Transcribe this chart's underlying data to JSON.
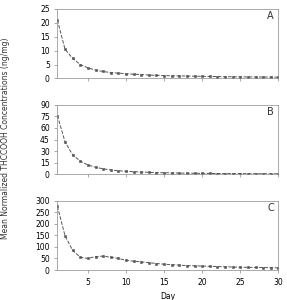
{
  "title": "",
  "ylabel": "Mean Normalized THCCOOH Concentrations (ng/mg)",
  "xlabel": "Day",
  "panel_labels": [
    "A",
    "B",
    "C"
  ],
  "xlim": [
    1,
    30
  ],
  "panel_A": {
    "ylim": [
      0,
      25
    ],
    "yticks": [
      0,
      5,
      10,
      15,
      20,
      25
    ],
    "x": [
      1,
      2,
      3,
      4,
      5,
      6,
      7,
      8,
      9,
      10,
      11,
      12,
      13,
      14,
      15,
      16,
      17,
      18,
      19,
      20,
      21,
      22,
      23,
      24,
      25,
      26,
      27,
      28,
      29,
      30
    ],
    "y": [
      21.0,
      10.5,
      7.2,
      5.0,
      3.8,
      3.0,
      2.5,
      2.1,
      1.9,
      1.7,
      1.5,
      1.4,
      1.2,
      1.1,
      1.0,
      0.95,
      0.9,
      0.85,
      0.8,
      0.75,
      0.7,
      0.65,
      0.62,
      0.6,
      0.58,
      0.55,
      0.52,
      0.5,
      0.48,
      0.45
    ]
  },
  "panel_B": {
    "ylim": [
      0,
      90
    ],
    "yticks": [
      0,
      15,
      30,
      45,
      60,
      75,
      90
    ],
    "x": [
      1,
      2,
      3,
      4,
      5,
      6,
      7,
      8,
      9,
      10,
      11,
      12,
      13,
      14,
      15,
      16,
      17,
      18,
      19,
      20,
      21,
      22,
      23,
      24,
      25,
      26,
      27,
      28,
      29,
      30
    ],
    "y": [
      76.0,
      42.0,
      25.0,
      17.0,
      12.0,
      9.0,
      7.0,
      5.5,
      4.5,
      3.8,
      3.2,
      2.8,
      2.4,
      2.1,
      1.9,
      1.7,
      1.5,
      1.3,
      1.2,
      1.1,
      1.0,
      0.9,
      0.85,
      0.8,
      0.75,
      0.7,
      0.65,
      0.6,
      0.55,
      0.5
    ]
  },
  "panel_C": {
    "ylim": [
      0,
      300
    ],
    "yticks": [
      0,
      50,
      100,
      150,
      200,
      250,
      300
    ],
    "x": [
      1,
      2,
      3,
      4,
      5,
      6,
      7,
      8,
      9,
      10,
      11,
      12,
      13,
      14,
      15,
      16,
      17,
      18,
      19,
      20,
      21,
      22,
      23,
      24,
      25,
      26,
      27,
      28,
      29,
      30
    ],
    "y": [
      275.0,
      148.0,
      85.0,
      55.0,
      50.0,
      58.0,
      60.0,
      55.0,
      50.0,
      42.0,
      38.0,
      35.0,
      32.0,
      28.0,
      25.0,
      23.0,
      21.0,
      19.0,
      18.0,
      17.0,
      16.0,
      15.0,
      14.0,
      13.0,
      12.0,
      11.5,
      11.0,
      10.5,
      10.0,
      9.0
    ]
  },
  "line_color": "#555555",
  "marker": "s",
  "markersize": 2.0,
  "linewidth": 0.7,
  "linestyle": "--",
  "bg_color": "#ffffff",
  "fig_bg_color": "#ffffff",
  "xticks": [
    5,
    10,
    15,
    20,
    25,
    30
  ],
  "tick_fontsize": 5.5,
  "label_fontsize": 5.5,
  "panel_label_fontsize": 7
}
